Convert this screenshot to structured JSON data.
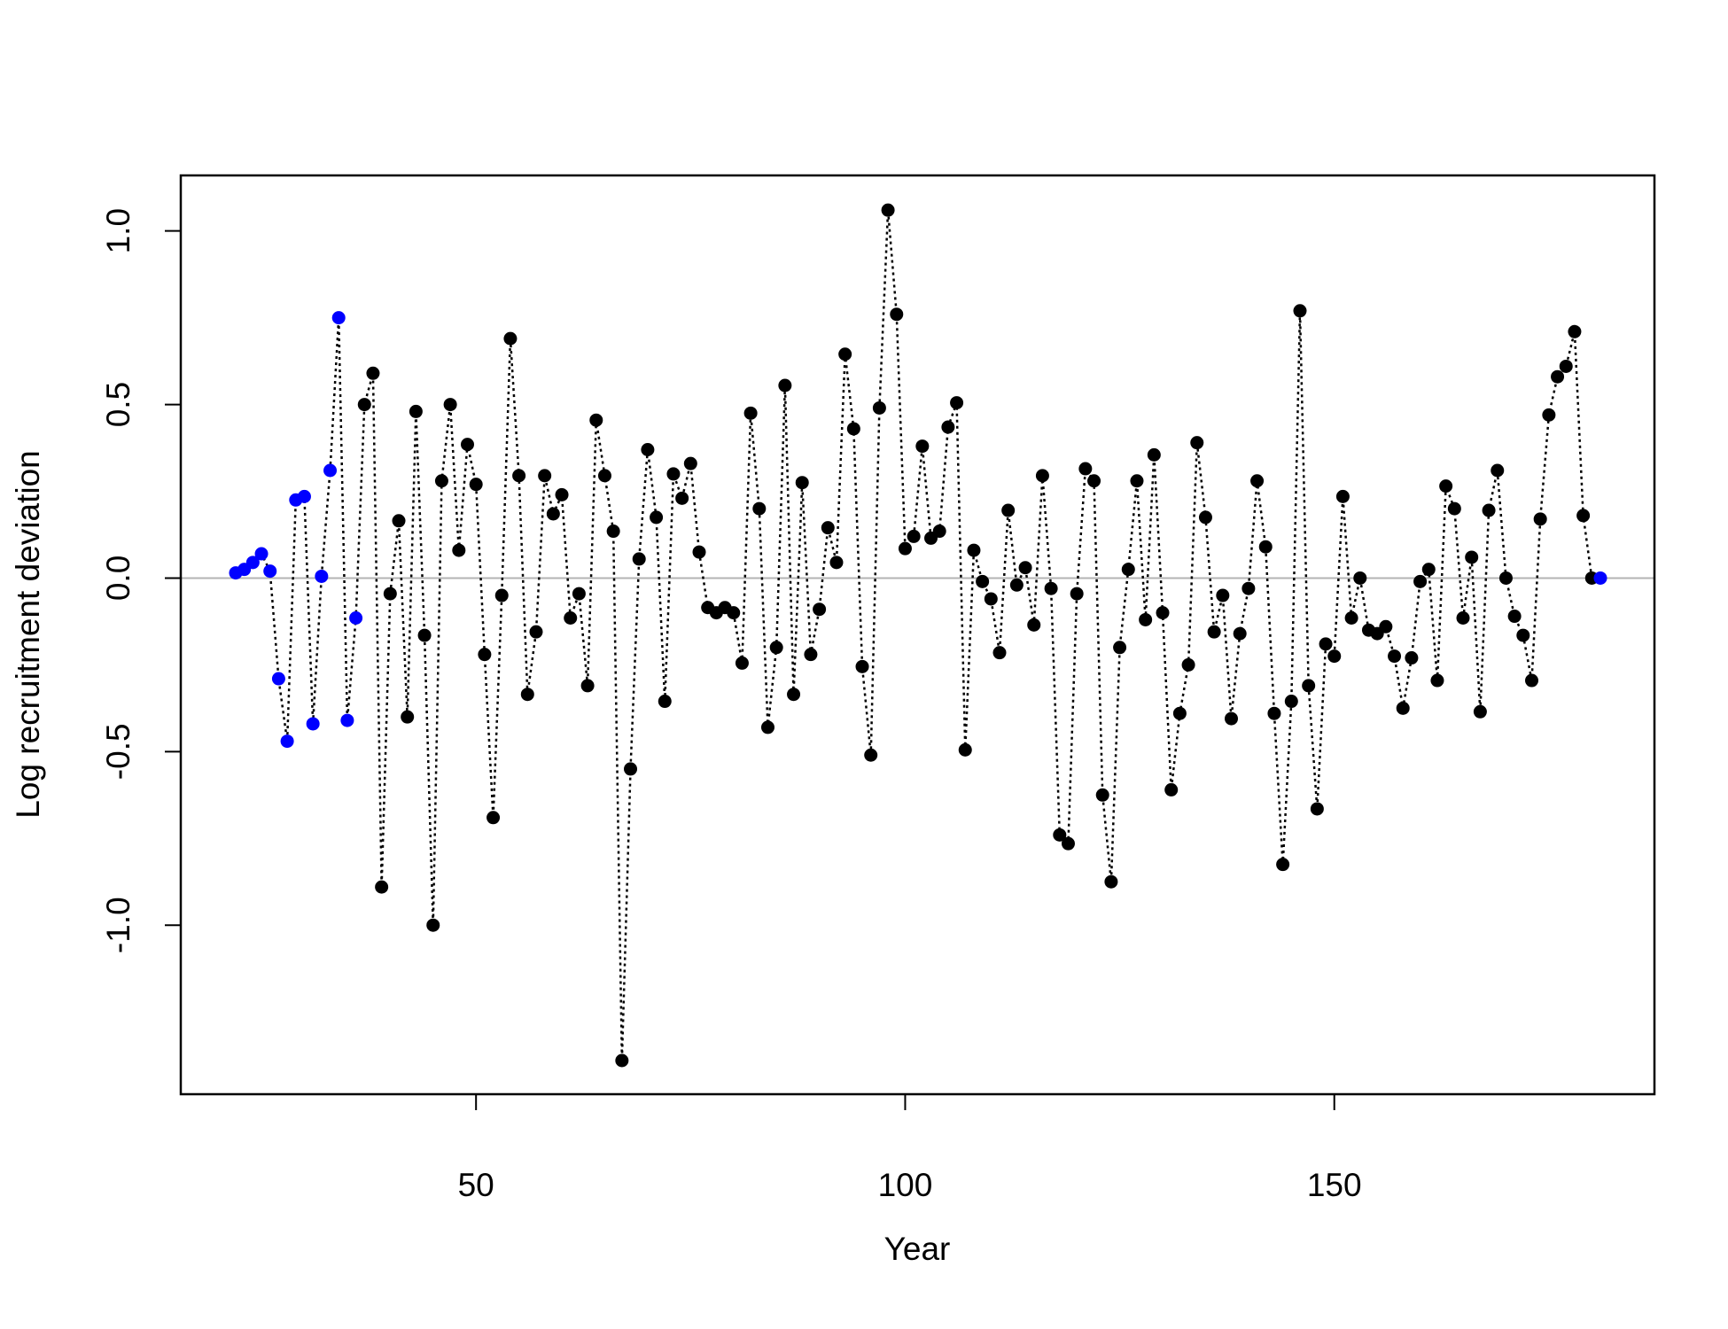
{
  "chart_data": {
    "type": "line",
    "xlabel": "Year",
    "ylabel": "Log recruitment deviation",
    "x": [
      22,
      23,
      24,
      25,
      26,
      27,
      28,
      29,
      30,
      31,
      32,
      33,
      34,
      35,
      36,
      37,
      38,
      39,
      40,
      41,
      42,
      43,
      44,
      45,
      46,
      47,
      48,
      49,
      50,
      51,
      52,
      53,
      54,
      55,
      56,
      57,
      58,
      59,
      60,
      61,
      62,
      63,
      64,
      65,
      66,
      67,
      68,
      69,
      70,
      71,
      72,
      73,
      74,
      75,
      76,
      77,
      78,
      79,
      80,
      81,
      82,
      83,
      84,
      85,
      86,
      87,
      88,
      89,
      90,
      91,
      92,
      93,
      94,
      95,
      96,
      97,
      98,
      99,
      100,
      101,
      102,
      103,
      104,
      105,
      106,
      107,
      108,
      109,
      110,
      111,
      112,
      113,
      114,
      115,
      116,
      117,
      118,
      119,
      120,
      121,
      122,
      123,
      124,
      125,
      126,
      127,
      128,
      129,
      130,
      131,
      132,
      133,
      134,
      135,
      136,
      137,
      138,
      139,
      140,
      141,
      142,
      143,
      144,
      145,
      146,
      147,
      148,
      149,
      150,
      151,
      152,
      153,
      154,
      155,
      156,
      157,
      158,
      159,
      160,
      161,
      162,
      163,
      164,
      165,
      166,
      167,
      168,
      169,
      170,
      171,
      172,
      173,
      174,
      175,
      176,
      177,
      178,
      179,
      180,
      181
    ],
    "values": [
      0.015,
      0.025,
      0.045,
      0.07,
      0.02,
      -0.29,
      -0.47,
      0.225,
      0.235,
      -0.42,
      0.005,
      0.31,
      0.75,
      -0.41,
      -0.115,
      0.5,
      0.59,
      -0.89,
      -0.045,
      0.165,
      -0.4,
      0.48,
      -0.165,
      -1.0,
      0.28,
      0.5,
      0.08,
      0.385,
      0.27,
      -0.22,
      -0.69,
      -0.05,
      0.69,
      0.295,
      -0.335,
      -0.155,
      0.295,
      0.185,
      0.24,
      -0.115,
      -0.045,
      -0.31,
      0.455,
      0.295,
      0.135,
      -1.39,
      -0.55,
      0.055,
      0.37,
      0.175,
      -0.355,
      0.3,
      0.23,
      0.33,
      0.075,
      -0.085,
      -0.1,
      -0.085,
      -0.1,
      -0.245,
      0.475,
      0.2,
      -0.43,
      -0.2,
      0.555,
      -0.335,
      0.275,
      -0.22,
      -0.09,
      0.145,
      0.045,
      0.645,
      0.43,
      -0.255,
      -0.51,
      0.49,
      1.06,
      0.76,
      0.085,
      0.12,
      0.38,
      0.115,
      0.135,
      0.435,
      0.505,
      -0.495,
      0.08,
      -0.01,
      -0.06,
      -0.215,
      0.195,
      -0.02,
      0.03,
      -0.135,
      0.295,
      -0.03,
      -0.74,
      -0.765,
      -0.045,
      0.315,
      0.28,
      -0.625,
      -0.875,
      -0.2,
      0.025,
      0.28,
      -0.12,
      0.355,
      -0.1,
      -0.61,
      -0.39,
      -0.25,
      0.39,
      0.175,
      -0.155,
      -0.05,
      -0.405,
      -0.16,
      -0.03,
      0.28,
      0.09,
      -0.39,
      -0.825,
      -0.355,
      0.77,
      -0.31,
      -0.665,
      -0.19,
      -0.225,
      0.235,
      -0.115,
      0.0,
      -0.15,
      -0.16,
      -0.14,
      -0.225,
      -0.375,
      -0.23,
      -0.01,
      0.025,
      -0.295,
      0.265,
      0.2,
      -0.115,
      0.06,
      -0.385,
      0.195,
      0.31,
      0.0,
      -0.11,
      -0.165,
      -0.295,
      0.17,
      0.47,
      0.58,
      0.61,
      0.71,
      0.18,
      0.0,
      0.0
    ],
    "line_color": "#000000",
    "point_colors": [
      "#0000ff",
      "#0000ff",
      "#0000ff",
      "#0000ff",
      "#0000ff",
      "#0000ff",
      "#0000ff",
      "#0000ff",
      "#0000ff",
      "#0000ff",
      "#0000ff",
      "#0000ff",
      "#0000ff",
      "#0000ff",
      "#0000ff",
      "#000000",
      "#000000",
      "#000000",
      "#000000",
      "#000000",
      "#000000",
      "#000000",
      "#000000",
      "#000000",
      "#000000",
      "#000000",
      "#000000",
      "#000000",
      "#000000",
      "#000000",
      "#000000",
      "#000000",
      "#000000",
      "#000000",
      "#000000",
      "#000000",
      "#000000",
      "#000000",
      "#000000",
      "#000000",
      "#000000",
      "#000000",
      "#000000",
      "#000000",
      "#000000",
      "#000000",
      "#000000",
      "#000000",
      "#000000",
      "#000000",
      "#000000",
      "#000000",
      "#000000",
      "#000000",
      "#000000",
      "#000000",
      "#000000",
      "#000000",
      "#000000",
      "#000000",
      "#000000",
      "#000000",
      "#000000",
      "#000000",
      "#000000",
      "#000000",
      "#000000",
      "#000000",
      "#000000",
      "#000000",
      "#000000",
      "#000000",
      "#000000",
      "#000000",
      "#000000",
      "#000000",
      "#000000",
      "#000000",
      "#000000",
      "#000000",
      "#000000",
      "#000000",
      "#000000",
      "#000000",
      "#000000",
      "#000000",
      "#000000",
      "#000000",
      "#000000",
      "#000000",
      "#000000",
      "#000000",
      "#000000",
      "#000000",
      "#000000",
      "#000000",
      "#000000",
      "#000000",
      "#000000",
      "#000000",
      "#000000",
      "#000000",
      "#000000",
      "#000000",
      "#000000",
      "#000000",
      "#000000",
      "#000000",
      "#000000",
      "#000000",
      "#000000",
      "#000000",
      "#000000",
      "#000000",
      "#000000",
      "#000000",
      "#000000",
      "#000000",
      "#000000",
      "#000000",
      "#000000",
      "#000000",
      "#000000",
      "#000000",
      "#000000",
      "#000000",
      "#000000",
      "#000000",
      "#000000",
      "#000000",
      "#000000",
      "#000000",
      "#000000",
      "#000000",
      "#000000",
      "#000000",
      "#000000",
      "#000000",
      "#000000",
      "#000000",
      "#000000",
      "#000000",
      "#000000",
      "#000000",
      "#000000",
      "#000000",
      "#000000",
      "#000000",
      "#000000",
      "#000000",
      "#000000",
      "#000000",
      "#000000",
      "#000000",
      "#000000",
      "#000000",
      "#000000",
      "#000000",
      "#000000",
      "#0000ff"
    ],
    "reference_line": 0,
    "reference_color": "#b3b3b3",
    "xlim": [
      15.6,
      187.3
    ],
    "xticks": [
      50,
      100,
      150
    ],
    "ylim": [
      -1.487,
      1.16
    ],
    "yticks": [
      {
        "value": -1.0,
        "label": "-1.0"
      },
      {
        "value": -0.5,
        "label": "-0.5"
      },
      {
        "value": 0.0,
        "label": "0.0"
      },
      {
        "value": 0.5,
        "label": "0.5"
      },
      {
        "value": 1.0,
        "label": "1.0"
      }
    ]
  }
}
